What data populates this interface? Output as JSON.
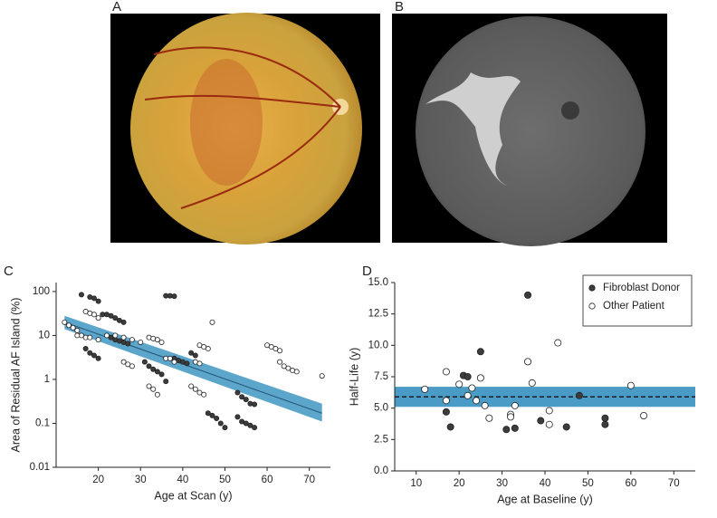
{
  "panel_labels": [
    "A",
    "B",
    "C",
    "D"
  ],
  "chart_data": [
    {
      "type": "scatter",
      "x_label": "Age at Scan (y)",
      "y_label": "Area of Residual AF Island (%)",
      "xlim": [
        10,
        75
      ],
      "xticks": [
        20,
        30,
        40,
        50,
        60,
        70
      ],
      "ylim": [
        0.01,
        160
      ],
      "yticks": [
        0.01,
        0.1,
        1,
        10,
        100
      ],
      "yscale": "log",
      "series": [
        {
          "color": "#3c3c3c",
          "edgecolor": "#222222",
          "x": [
            16,
            18,
            19,
            20,
            21,
            22,
            23,
            24,
            25,
            26,
            17,
            18,
            19,
            20,
            23,
            24,
            25,
            26,
            27,
            31,
            32,
            33,
            34,
            35,
            36,
            36,
            37,
            38,
            38,
            39,
            40,
            41,
            42,
            43,
            46,
            47,
            48,
            49,
            50,
            53,
            54,
            55,
            56,
            57,
            53,
            54,
            55,
            56,
            57
          ],
          "values": [
            85,
            75,
            70,
            60,
            30,
            30,
            28,
            25,
            22,
            20,
            5,
            4,
            3.5,
            3,
            9,
            8,
            7.5,
            7,
            6.5,
            2.5,
            2,
            1.7,
            1.5,
            1.3,
            0.9,
            80,
            80,
            78,
            3,
            2.7,
            2.5,
            2.3,
            4,
            3.5,
            0.17,
            0.15,
            0.13,
            0.1,
            0.08,
            0.5,
            0.4,
            0.35,
            0.28,
            0.27,
            0.14,
            0.11,
            0.1,
            0.09,
            0.08
          ]
        },
        {
          "color": "#ffffff",
          "edgecolor": "#222222",
          "x": [
            12,
            13,
            14,
            15,
            16,
            17,
            18,
            19,
            20,
            15,
            17,
            18,
            20,
            22,
            24,
            26,
            28,
            30,
            26,
            27,
            28,
            32,
            33,
            34,
            35,
            32,
            33,
            34,
            36,
            37,
            38,
            42,
            43,
            44,
            45,
            43,
            44,
            44,
            45,
            46,
            47,
            60,
            61,
            62,
            63,
            63,
            64,
            65,
            66,
            67,
            73
          ],
          "values": [
            20,
            17,
            15,
            13,
            10,
            35,
            32,
            30,
            25,
            10,
            9,
            9,
            8,
            10,
            10,
            9,
            8,
            7,
            2.5,
            2.2,
            2,
            9,
            8.5,
            8,
            7,
            0.7,
            0.6,
            0.45,
            3,
            3,
            2.5,
            0.7,
            0.6,
            0.5,
            0.45,
            2.5,
            2.3,
            6,
            5.5,
            5,
            20,
            6,
            5.5,
            5,
            4.5,
            2.5,
            2,
            1.8,
            1.6,
            1.5,
            1.2
          ]
        }
      ],
      "fit": {
        "color": "#4a9cc7",
        "x": [
          12,
          73
        ],
        "values": [
          20,
          0.17
        ],
        "lower": [
          14,
          0.11
        ],
        "upper": [
          28,
          0.28
        ]
      }
    },
    {
      "type": "scatter",
      "x_label": "Age at Baseline (y)",
      "y_label": "Half-Life (y)",
      "xlim": [
        5,
        75
      ],
      "xticks": [
        10,
        20,
        30,
        40,
        50,
        60,
        70
      ],
      "ylim": [
        0,
        15
      ],
      "yticks": [
        {
          "value": 0,
          "label": "0.0"
        },
        2.5,
        {
          "value": 5,
          "label": "5.0"
        },
        7.5,
        {
          "value": 10,
          "label": "10.0"
        },
        12.5,
        {
          "value": 15,
          "label": "15.0"
        }
      ],
      "legend": "upper right",
      "series": [
        {
          "name": "Fibroblast Donor",
          "color": "#3c3c3c",
          "edgecolor": "#222222",
          "x": [
            17,
            18,
            21,
            22,
            25,
            31,
            33,
            36,
            39,
            45,
            48,
            54,
            54
          ],
          "values": [
            4.7,
            3.5,
            7.6,
            7.5,
            9.5,
            3.3,
            3.4,
            14,
            4,
            3.5,
            6,
            3.7,
            4.2
          ]
        },
        {
          "name": "Other Patient",
          "color": "#ffffff",
          "edgecolor": "#222222",
          "x": [
            12,
            17,
            17,
            20,
            22,
            23,
            24,
            25,
            26,
            27,
            32,
            32,
            33,
            36,
            37,
            41,
            41,
            43,
            60,
            63
          ],
          "values": [
            6.5,
            7.9,
            5.6,
            6.9,
            6.0,
            6.6,
            5.6,
            7.4,
            5.2,
            4.2,
            4.5,
            4.3,
            5.2,
            8.7,
            7.0,
            4.8,
            3.7,
            10.2,
            6.8,
            4.4
          ]
        }
      ],
      "reference": {
        "color": "#4a9cc7",
        "value": 5.9,
        "lower": 5.1,
        "upper": 6.7
      }
    }
  ]
}
